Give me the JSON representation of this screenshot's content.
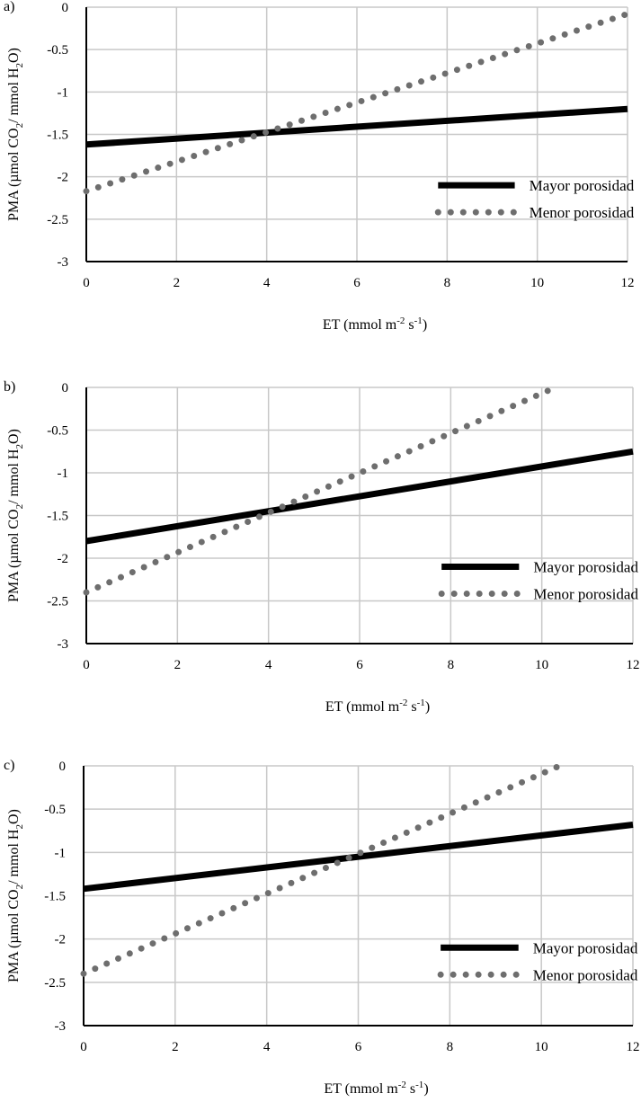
{
  "legend": {
    "solid": "Mayor porosidad",
    "dotted": "Menor porosidad"
  },
  "axis_labels": {
    "x": {
      "base": "ET (mmol m",
      "sup1": "-2",
      "mid": " s",
      "sup2": "-1",
      "end": ")"
    },
    "y": {
      "p1": "PMA (µmol CO",
      "sub1": "2",
      "p2": "/ mmol H",
      "sub2": "2",
      "p3": "O)"
    }
  },
  "colors": {
    "solid": "#000000",
    "dotted": "#6e6e6e",
    "grid": "#c8c8c8"
  },
  "chart_data": [
    {
      "type": "line",
      "panel_label": "a)",
      "xlabel": "ET (mmol m-2 s-1)",
      "ylabel": "PMA (µmol CO2/ mmol H2O)",
      "xlim": [
        0,
        12
      ],
      "ylim": [
        -3,
        0
      ],
      "xticks": [
        "0",
        "2",
        "4",
        "6",
        "8",
        "10",
        "12"
      ],
      "yticks": [
        "0",
        "-0.5",
        "-1",
        "-1.5",
        "-2",
        "-2.5",
        "-3"
      ],
      "grid": true,
      "legend_position": "lower-right",
      "series": [
        {
          "name": "Mayor porosidad",
          "style": "solid",
          "x": [
            0,
            12
          ],
          "y": [
            -1.62,
            -1.2
          ]
        },
        {
          "name": "Menor porosidad",
          "style": "dotted",
          "x": [
            0,
            12
          ],
          "y": [
            -2.17,
            -0.08
          ]
        }
      ]
    },
    {
      "type": "line",
      "panel_label": "b)",
      "xlabel": "ET (mmol m-2 s-1)",
      "ylabel": "PMA (µmol CO2/ mmol H2O)",
      "xlim": [
        0,
        12
      ],
      "ylim": [
        -3,
        0
      ],
      "xticks": [
        "0",
        "2",
        "4",
        "6",
        "8",
        "10",
        "12"
      ],
      "yticks": [
        "0",
        "-0.5",
        "-1",
        "-1.5",
        "-2",
        "-2.5",
        "-3"
      ],
      "grid": true,
      "legend_position": "lower-right",
      "series": [
        {
          "name": "Mayor porosidad",
          "style": "solid",
          "x": [
            0,
            12
          ],
          "y": [
            -1.8,
            -0.75
          ]
        },
        {
          "name": "Menor porosidad",
          "style": "dotted",
          "x": [
            0,
            10.3
          ],
          "y": [
            -2.4,
            0
          ]
        }
      ]
    },
    {
      "type": "line",
      "panel_label": "c)",
      "xlabel": "ET (mmol m-2 s-1)",
      "ylabel": "PMA (µmol CO2/ mmol H2O)",
      "xlim": [
        0,
        12
      ],
      "ylim": [
        -3,
        0
      ],
      "xticks": [
        "0",
        "2",
        "4",
        "6",
        "8",
        "10",
        "12"
      ],
      "yticks": [
        "0",
        "-0.5",
        "-1",
        "-1.5",
        "-2",
        "-2.5",
        "-3"
      ],
      "grid": true,
      "legend_position": "lower-right",
      "series": [
        {
          "name": "Mayor porosidad",
          "style": "solid",
          "x": [
            0,
            12
          ],
          "y": [
            -1.42,
            -0.68
          ]
        },
        {
          "name": "Menor porosidad",
          "style": "dotted",
          "x": [
            0,
            10.4
          ],
          "y": [
            -2.4,
            0
          ]
        }
      ]
    }
  ]
}
